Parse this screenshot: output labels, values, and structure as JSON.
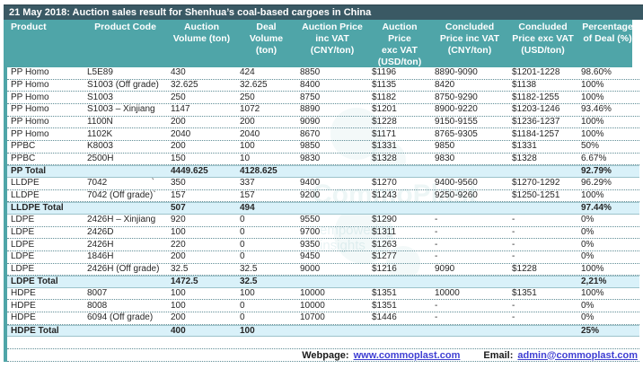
{
  "title": "21 May 2018: Auction sales result for Shenhua’s coal-based cargoes in China",
  "table": {
    "columns": [
      {
        "key": "product",
        "label": "Product"
      },
      {
        "key": "product-code",
        "label": "Product Code"
      },
      {
        "key": "auction-volume",
        "label": "Auction\nVolume (ton)"
      },
      {
        "key": "deal-volume",
        "label": "Deal\nVolume\n(ton)"
      },
      {
        "key": "auction-price-inc-vat",
        "label": "Auction Price\ninc VAT\n(CNY/ton)"
      },
      {
        "key": "auction-price-exc-vat",
        "label": "Auction\nPrice\nexc VAT\n(USD/ton)"
      },
      {
        "key": "concluded-price-inc-vat",
        "label": "Concluded\nPrice inc VAT\n(CNY/ton)"
      },
      {
        "key": "concluded-price-exc-vat",
        "label": "Concluded\nPrice exc VAT\n(USD/ton)"
      },
      {
        "key": "percentage-of-deal",
        "label": "Percentage\nof Deal (%)"
      }
    ],
    "rows": [
      {
        "total": false,
        "tick": "",
        "cells": [
          "PP Homo",
          "L5E89",
          "430",
          "424",
          "8850",
          "$1196",
          "8890-9090",
          "$1201-1228",
          "98.60%"
        ]
      },
      {
        "total": false,
        "tick": "",
        "cells": [
          "PP Homo",
          "S1003 (Off grade)",
          "32.625",
          "32.625",
          "8400",
          "$1135",
          "8420",
          "$1138",
          "100%"
        ]
      },
      {
        "total": false,
        "tick": "",
        "cells": [
          "PP Homo",
          "S1003",
          "250",
          "250",
          "8750",
          "$1182",
          "8750-9290",
          "$1182-1255",
          "100%"
        ]
      },
      {
        "total": false,
        "tick": "",
        "cells": [
          "PP Homo",
          "S1003 – Xinjiang",
          "1147",
          "1072",
          "8890",
          "$1201",
          "8900-9220",
          "$1203-1246",
          "93.46%"
        ]
      },
      {
        "total": false,
        "tick": "",
        "cells": [
          "PP Homo",
          "1100N",
          "200",
          "200",
          "9090",
          "$1228",
          "9150-9155",
          "$1236-1237",
          "100%"
        ]
      },
      {
        "total": false,
        "tick": "",
        "cells": [
          "PP Homo",
          "1102K",
          "2040",
          "2040",
          "8670",
          "$1171",
          "8765-9305",
          "$1184-1257",
          "100%"
        ]
      },
      {
        "total": false,
        "tick": "",
        "cells": [
          "PPBC",
          "K8003",
          "200",
          "100",
          "9850",
          "$1331",
          "9850",
          "$1331",
          "50%"
        ]
      },
      {
        "total": false,
        "tick": "",
        "cells": [
          "PPBC",
          "2500H",
          "150",
          "10",
          "9830",
          "$1328",
          "9830",
          "$1328",
          "6.67%"
        ]
      },
      {
        "total": true,
        "tick": "",
        "cells": [
          "PP Total",
          "",
          "4449.625",
          "4128.625",
          "",
          "",
          "",
          "",
          "92.79%"
        ]
      },
      {
        "total": false,
        "tick": "`",
        "cells": [
          "LLDPE",
          "7042",
          "350",
          "337",
          "9400",
          "$1270",
          "9400-9560",
          "$1270-1292",
          "96.29%"
        ]
      },
      {
        "total": false,
        "tick": "`",
        "cells": [
          "LLDPE",
          "7042 (Off grade)",
          "157",
          "157",
          "9200",
          "$1243",
          "9250-9260",
          "$1250-1251",
          "100%"
        ]
      },
      {
        "total": true,
        "tick": "",
        "cells": [
          "LLDPE Total",
          "",
          "507",
          "494",
          "",
          "",
          "",
          "",
          "97.44%"
        ]
      },
      {
        "total": false,
        "tick": "",
        "cells": [
          "LDPE",
          "2426H – Xinjiang",
          "920",
          "0",
          "9550",
          "$1290",
          "-",
          "-",
          "0%"
        ]
      },
      {
        "total": false,
        "tick": "",
        "cells": [
          "LDPE",
          "2426D",
          "100",
          "0",
          "9700",
          "$1311",
          "-",
          "-",
          "0%"
        ]
      },
      {
        "total": false,
        "tick": "",
        "cells": [
          "LDPE",
          "2426H",
          "220",
          "0",
          "9350",
          "$1263",
          "-",
          "-",
          "0%"
        ]
      },
      {
        "total": false,
        "tick": "",
        "cells": [
          "LDPE",
          "1846H",
          "200",
          "0",
          "9450",
          "$1277",
          "-",
          "-",
          "0%"
        ]
      },
      {
        "total": false,
        "tick": "",
        "cells": [
          "LDPE",
          "2426H (Off grade)",
          "32.5",
          "32.5",
          "9000",
          "$1216",
          "9090",
          "$1228",
          "100%"
        ]
      },
      {
        "total": true,
        "tick": "",
        "cells": [
          "LDPE Total",
          "",
          "1472.5",
          "32.5",
          "",
          "",
          "",
          "",
          "2,21%"
        ]
      },
      {
        "total": false,
        "tick": "",
        "cells": [
          "HDPE",
          "8007",
          "100",
          "100",
          "10000",
          "$1351",
          "10000",
          "$1351",
          "100%"
        ]
      },
      {
        "total": false,
        "tick": "",
        "cells": [
          "HDPE",
          "8008",
          "100",
          "0",
          "10000",
          "$1351",
          "-",
          "-",
          "0%"
        ]
      },
      {
        "total": false,
        "tick": "",
        "cells": [
          "HDPE",
          "6094 (Off grade)",
          "200",
          "0",
          "10700",
          "$1446",
          "-",
          "-",
          "0%"
        ]
      },
      {
        "total": true,
        "tick": "",
        "cells": [
          "HDPE Total",
          "",
          "400",
          "100",
          "",
          "",
          "",
          "",
          "25%"
        ]
      }
    ]
  },
  "footer": {
    "webpage_label": "Webpage:",
    "webpage_url": "www.commoplast.com",
    "email_label": "Email:",
    "email_url": "admin@commoplast.com"
  },
  "watermark": {
    "line1": "CommoPlast",
    "line2": "empowering insights"
  },
  "colors": {
    "title_bar_bg": "#3a5964",
    "header_bg": "#4fa5a8",
    "total_row_bg": "#d9f1f9",
    "link": "#3f3fd3",
    "dotted_rule": "#5f8d96"
  }
}
